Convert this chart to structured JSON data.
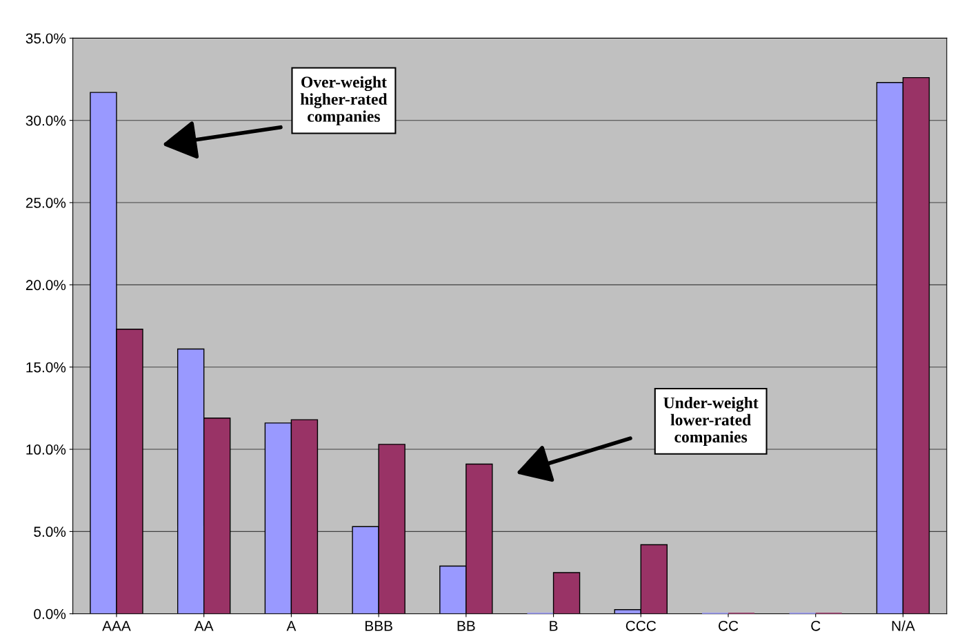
{
  "chart_data": {
    "type": "bar",
    "categories": [
      "AAA",
      "AA",
      "A",
      "BBB",
      "BB",
      "B",
      "CCC",
      "CC",
      "C",
      "N/A"
    ],
    "series": [
      {
        "color": "#9999ff",
        "values": [
          31.7,
          16.1,
          11.6,
          5.3,
          2.9,
          0,
          0.25,
          0,
          0,
          32.3
        ]
      },
      {
        "color": "#993366",
        "values": [
          17.3,
          11.9,
          11.8,
          10.3,
          9.1,
          2.5,
          4.2,
          0,
          0,
          32.6
        ]
      }
    ],
    "ylim": [
      0,
      35
    ],
    "yticks": [
      {
        "value": 0,
        "label": "0.0%"
      },
      {
        "value": 5,
        "label": "5.0%"
      },
      {
        "value": 10,
        "label": "10.0%"
      },
      {
        "value": 15,
        "label": "15.0%"
      },
      {
        "value": 20,
        "label": "20.0%"
      },
      {
        "value": 25,
        "label": "25.0%"
      },
      {
        "value": 30,
        "label": "30.0%"
      },
      {
        "value": 35,
        "label": "35.0%"
      }
    ],
    "grid": "y",
    "annotations": [
      "Over-weight\nhigher-rated\ncompanies",
      "Under-weight\nlower-rated\ncompanies"
    ]
  }
}
